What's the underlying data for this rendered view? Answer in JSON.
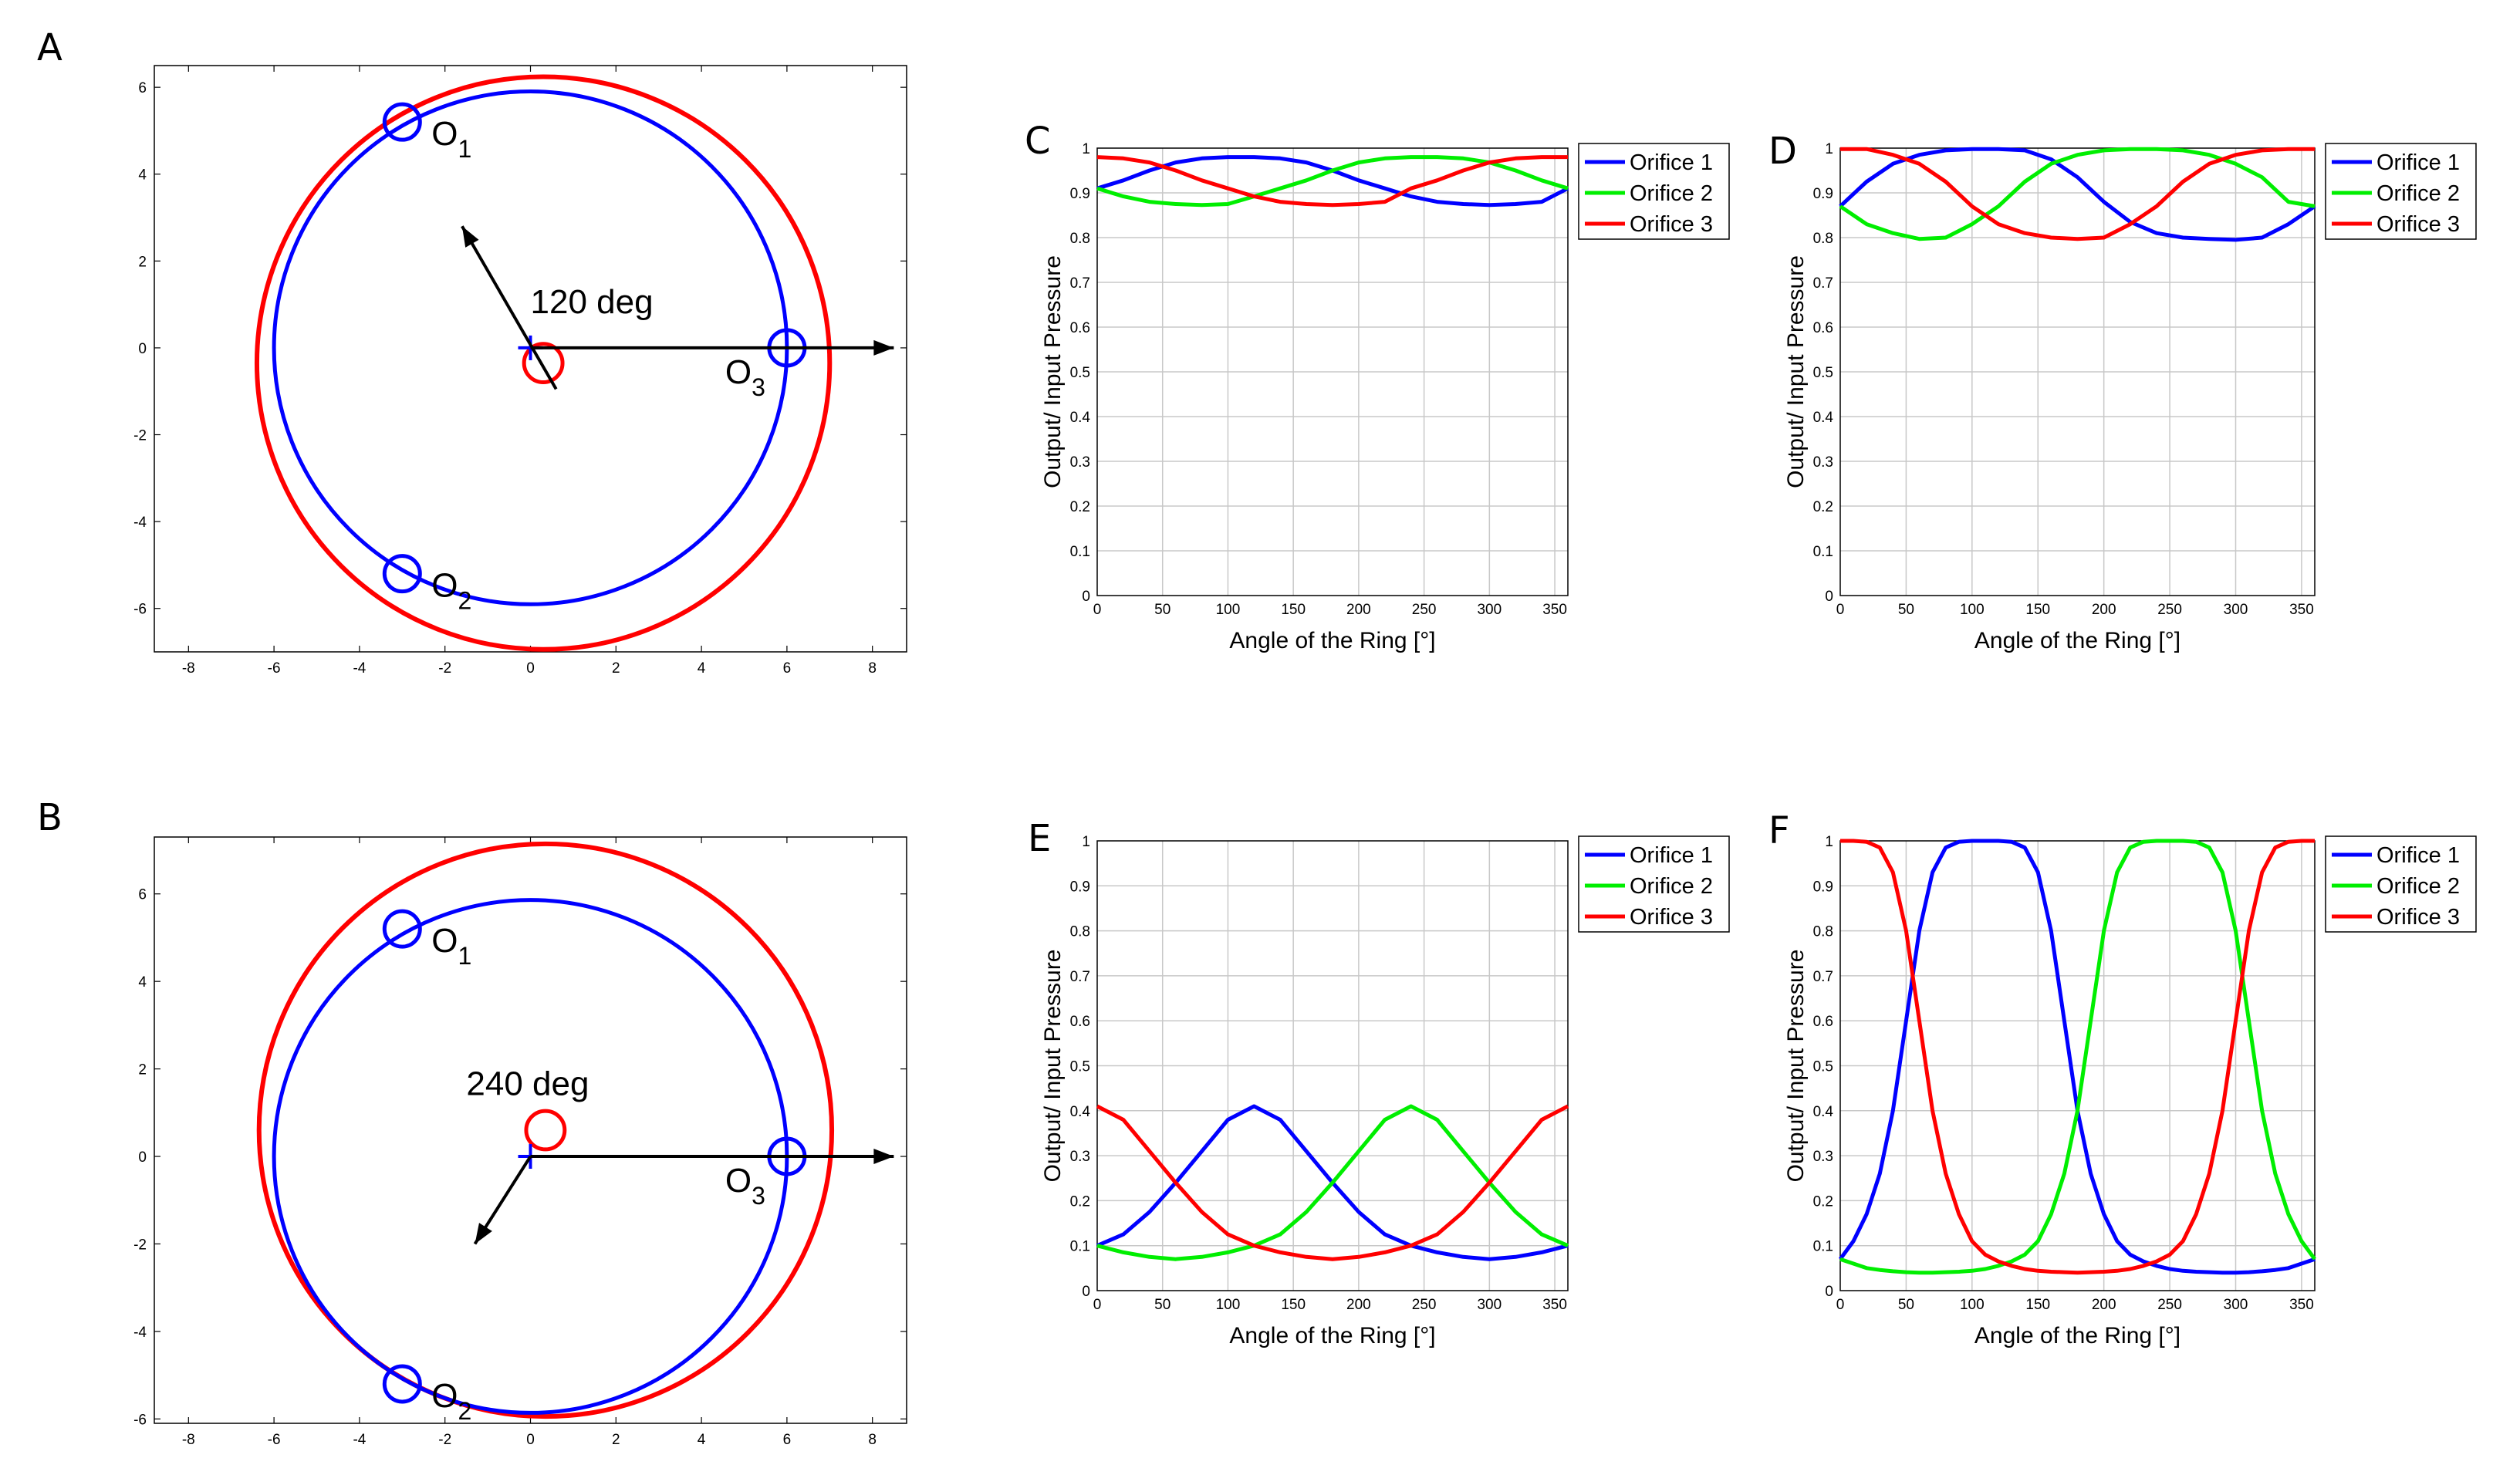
{
  "figure": {
    "panel_letters": [
      "A",
      "B",
      "C",
      "D",
      "E",
      "F"
    ],
    "colors": {
      "orifice_1": "#0000ff",
      "orifice_2": "#00ee00",
      "orifice_3": "#ff0000",
      "arrow": "#000000",
      "grid": "#c8c8c8"
    }
  },
  "chart_data": [
    {
      "id": "A",
      "type": "scatter",
      "title": "",
      "xlabel": "",
      "ylabel": "",
      "xlim": [
        -8.8,
        8.8
      ],
      "ylim": [
        -7,
        6.5
      ],
      "xticks": [
        -8,
        -6,
        -4,
        -2,
        0,
        2,
        4,
        6,
        8
      ],
      "yticks": [
        -6,
        -4,
        -2,
        0,
        2,
        4,
        6
      ],
      "blue_circle": {
        "cx": 0,
        "cy": 0,
        "r": 6
      },
      "red_circle": {
        "cx": 0.3,
        "cy": -0.35,
        "r": 6.7
      },
      "center_marker": {
        "x": 0.3,
        "y": -0.35,
        "r": 0.45
      },
      "orifices": [
        {
          "label": "O",
          "sub": "1",
          "x": -3,
          "y": 5.2
        },
        {
          "label": "O",
          "sub": "2",
          "x": -3,
          "y": -5.2
        },
        {
          "label": "O",
          "sub": "3",
          "x": 6,
          "y": 0
        }
      ],
      "arrows": [
        {
          "x0": 0,
          "y0": 0,
          "x1": 8.5,
          "y1": 0
        },
        {
          "x0": 0.6,
          "y0": -0.95,
          "x1": -1.6,
          "y1": 2.8
        }
      ],
      "annotation": "120 deg",
      "annotation_pos": {
        "x": 0,
        "y": 0.8
      }
    },
    {
      "id": "B",
      "type": "scatter",
      "title": "",
      "xlabel": "",
      "ylabel": "",
      "xlim": [
        -8.8,
        8.8
      ],
      "ylim": [
        -6.1,
        7.3
      ],
      "xticks": [
        -8,
        -6,
        -4,
        -2,
        0,
        2,
        4,
        6,
        8
      ],
      "yticks": [
        -6,
        -4,
        -2,
        0,
        2,
        4,
        6
      ],
      "blue_circle": {
        "cx": 0,
        "cy": 0,
        "r": 6
      },
      "red_circle": {
        "cx": 0.35,
        "cy": 0.6,
        "r": 6.7
      },
      "center_marker": {
        "x": 0.35,
        "y": 0.6,
        "r": 0.45
      },
      "orifices": [
        {
          "label": "O",
          "sub": "1",
          "x": -3,
          "y": 5.2
        },
        {
          "label": "O",
          "sub": "2",
          "x": -3,
          "y": -5.2
        },
        {
          "label": "O",
          "sub": "3",
          "x": 6,
          "y": 0
        }
      ],
      "arrows": [
        {
          "x0": 0,
          "y0": 0,
          "x1": 8.5,
          "y1": 0
        },
        {
          "x0": 0,
          "y0": 0,
          "x1": -1.3,
          "y1": -2
        }
      ],
      "annotation": "240 deg",
      "annotation_pos": {
        "x": -1.5,
        "y": 1.4
      }
    },
    {
      "id": "C",
      "type": "line",
      "xlabel": "Angle of the Ring [°]",
      "ylabel": "Output/ Input Pressure",
      "xlim": [
        0,
        360
      ],
      "ylim": [
        0,
        1
      ],
      "xticks": [
        0,
        50,
        100,
        150,
        200,
        250,
        300,
        350
      ],
      "yticks": [
        0,
        0.1,
        0.2,
        0.3,
        0.4,
        0.5,
        0.6,
        0.7,
        0.8,
        0.9,
        1
      ],
      "x": [
        0,
        20,
        40,
        60,
        80,
        100,
        120,
        140,
        160,
        180,
        200,
        220,
        240,
        260,
        280,
        300,
        320,
        340,
        360
      ],
      "series": [
        {
          "name": "Orifice 1",
          "values": [
            0.91,
            0.928,
            0.95,
            0.968,
            0.977,
            0.98,
            0.98,
            0.977,
            0.968,
            0.95,
            0.928,
            0.91,
            0.892,
            0.88,
            0.875,
            0.873,
            0.875,
            0.88,
            0.91
          ]
        },
        {
          "name": "Orifice 2",
          "values": [
            0.91,
            0.892,
            0.88,
            0.875,
            0.873,
            0.875,
            0.892,
            0.91,
            0.928,
            0.95,
            0.968,
            0.977,
            0.98,
            0.98,
            0.977,
            0.968,
            0.95,
            0.928,
            0.91
          ]
        },
        {
          "name": "Orifice 3",
          "values": [
            0.98,
            0.977,
            0.968,
            0.95,
            0.928,
            0.91,
            0.892,
            0.88,
            0.875,
            0.873,
            0.875,
            0.88,
            0.91,
            0.928,
            0.95,
            0.968,
            0.977,
            0.98,
            0.98
          ]
        }
      ],
      "legend": "top-right"
    },
    {
      "id": "D",
      "type": "line",
      "xlabel": "Angle of the Ring [°]",
      "ylabel": "Output/ Input Pressure",
      "xlim": [
        0,
        360
      ],
      "ylim": [
        0,
        1
      ],
      "xticks": [
        0,
        50,
        100,
        150,
        200,
        250,
        300,
        350
      ],
      "yticks": [
        0,
        0.1,
        0.2,
        0.3,
        0.4,
        0.5,
        0.6,
        0.7,
        0.8,
        0.9,
        1
      ],
      "x": [
        0,
        20,
        40,
        60,
        80,
        100,
        120,
        140,
        160,
        180,
        200,
        220,
        240,
        260,
        280,
        300,
        320,
        340,
        360
      ],
      "series": [
        {
          "name": "Orifice 1",
          "values": [
            0.87,
            0.925,
            0.965,
            0.985,
            0.995,
            0.998,
            0.998,
            0.995,
            0.975,
            0.935,
            0.88,
            0.835,
            0.81,
            0.8,
            0.797,
            0.795,
            0.8,
            0.83,
            0.87
          ]
        },
        {
          "name": "Orifice 2",
          "values": [
            0.87,
            0.83,
            0.81,
            0.797,
            0.8,
            0.83,
            0.87,
            0.925,
            0.965,
            0.985,
            0.995,
            0.998,
            0.998,
            0.995,
            0.985,
            0.965,
            0.935,
            0.88,
            0.87
          ]
        },
        {
          "name": "Orifice 3",
          "values": [
            0.998,
            0.998,
            0.985,
            0.965,
            0.925,
            0.87,
            0.83,
            0.81,
            0.8,
            0.797,
            0.8,
            0.83,
            0.87,
            0.925,
            0.965,
            0.985,
            0.995,
            0.998,
            0.998
          ]
        }
      ],
      "legend": "top-right"
    },
    {
      "id": "E",
      "type": "line",
      "xlabel": "Angle of the Ring [°]",
      "ylabel": "Output/ Input Pressure",
      "xlim": [
        0,
        360
      ],
      "ylim": [
        0,
        1
      ],
      "xticks": [
        0,
        50,
        100,
        150,
        200,
        250,
        300,
        350
      ],
      "yticks": [
        0,
        0.1,
        0.2,
        0.3,
        0.4,
        0.5,
        0.6,
        0.7,
        0.8,
        0.9,
        1
      ],
      "x": [
        0,
        20,
        40,
        60,
        80,
        100,
        120,
        140,
        160,
        180,
        200,
        220,
        240,
        260,
        280,
        300,
        320,
        340,
        360
      ],
      "series": [
        {
          "name": "Orifice 1",
          "values": [
            0.1,
            0.125,
            0.175,
            0.24,
            0.31,
            0.38,
            0.41,
            0.38,
            0.31,
            0.24,
            0.175,
            0.125,
            0.1,
            0.085,
            0.075,
            0.07,
            0.075,
            0.085,
            0.1
          ]
        },
        {
          "name": "Orifice 2",
          "values": [
            0.1,
            0.085,
            0.075,
            0.07,
            0.075,
            0.085,
            0.1,
            0.125,
            0.175,
            0.24,
            0.31,
            0.38,
            0.41,
            0.38,
            0.31,
            0.24,
            0.175,
            0.125,
            0.1
          ]
        },
        {
          "name": "Orifice 3",
          "values": [
            0.41,
            0.38,
            0.31,
            0.24,
            0.175,
            0.125,
            0.1,
            0.085,
            0.075,
            0.07,
            0.075,
            0.085,
            0.1,
            0.125,
            0.175,
            0.24,
            0.31,
            0.38,
            0.41
          ]
        }
      ],
      "legend": "top-right"
    },
    {
      "id": "F",
      "type": "line",
      "xlabel": "Angle of the Ring [°]",
      "ylabel": "Output/ Input Pressure",
      "xlim": [
        0,
        360
      ],
      "ylim": [
        0,
        1
      ],
      "xticks": [
        0,
        50,
        100,
        150,
        200,
        250,
        300,
        350
      ],
      "yticks": [
        0,
        0.1,
        0.2,
        0.3,
        0.4,
        0.5,
        0.6,
        0.7,
        0.8,
        0.9,
        1
      ],
      "x": [
        0,
        10,
        20,
        30,
        40,
        50,
        60,
        70,
        80,
        90,
        100,
        110,
        120,
        130,
        140,
        150,
        160,
        170,
        180,
        190,
        200,
        210,
        220,
        230,
        240,
        250,
        260,
        270,
        280,
        290,
        300,
        310,
        320,
        330,
        340,
        350,
        360
      ],
      "series": [
        {
          "name": "Orifice 1",
          "values": [
            0.07,
            0.11,
            0.17,
            0.26,
            0.4,
            0.6,
            0.8,
            0.93,
            0.985,
            0.998,
            1.0,
            1.0,
            1.0,
            0.998,
            0.985,
            0.93,
            0.8,
            0.6,
            0.4,
            0.26,
            0.17,
            0.11,
            0.08,
            0.065,
            0.055,
            0.048,
            0.044,
            0.042,
            0.041,
            0.04,
            0.04,
            0.041,
            0.043,
            0.046,
            0.05,
            0.06,
            0.07
          ]
        },
        {
          "name": "Orifice 2",
          "values": [
            0.07,
            0.06,
            0.05,
            0.046,
            0.043,
            0.041,
            0.04,
            0.04,
            0.041,
            0.042,
            0.044,
            0.048,
            0.055,
            0.065,
            0.08,
            0.11,
            0.17,
            0.26,
            0.4,
            0.6,
            0.8,
            0.93,
            0.985,
            0.998,
            1.0,
            1.0,
            1.0,
            0.998,
            0.985,
            0.93,
            0.8,
            0.6,
            0.4,
            0.26,
            0.17,
            0.11,
            0.07
          ]
        },
        {
          "name": "Orifice 3",
          "values": [
            1.0,
            1.0,
            0.998,
            0.985,
            0.93,
            0.8,
            0.6,
            0.4,
            0.26,
            0.17,
            0.11,
            0.08,
            0.065,
            0.055,
            0.048,
            0.044,
            0.042,
            0.041,
            0.04,
            0.041,
            0.042,
            0.044,
            0.048,
            0.055,
            0.065,
            0.08,
            0.11,
            0.17,
            0.26,
            0.4,
            0.6,
            0.8,
            0.93,
            0.985,
            0.998,
            1.0,
            1.0
          ]
        }
      ],
      "legend": "top-right"
    }
  ]
}
